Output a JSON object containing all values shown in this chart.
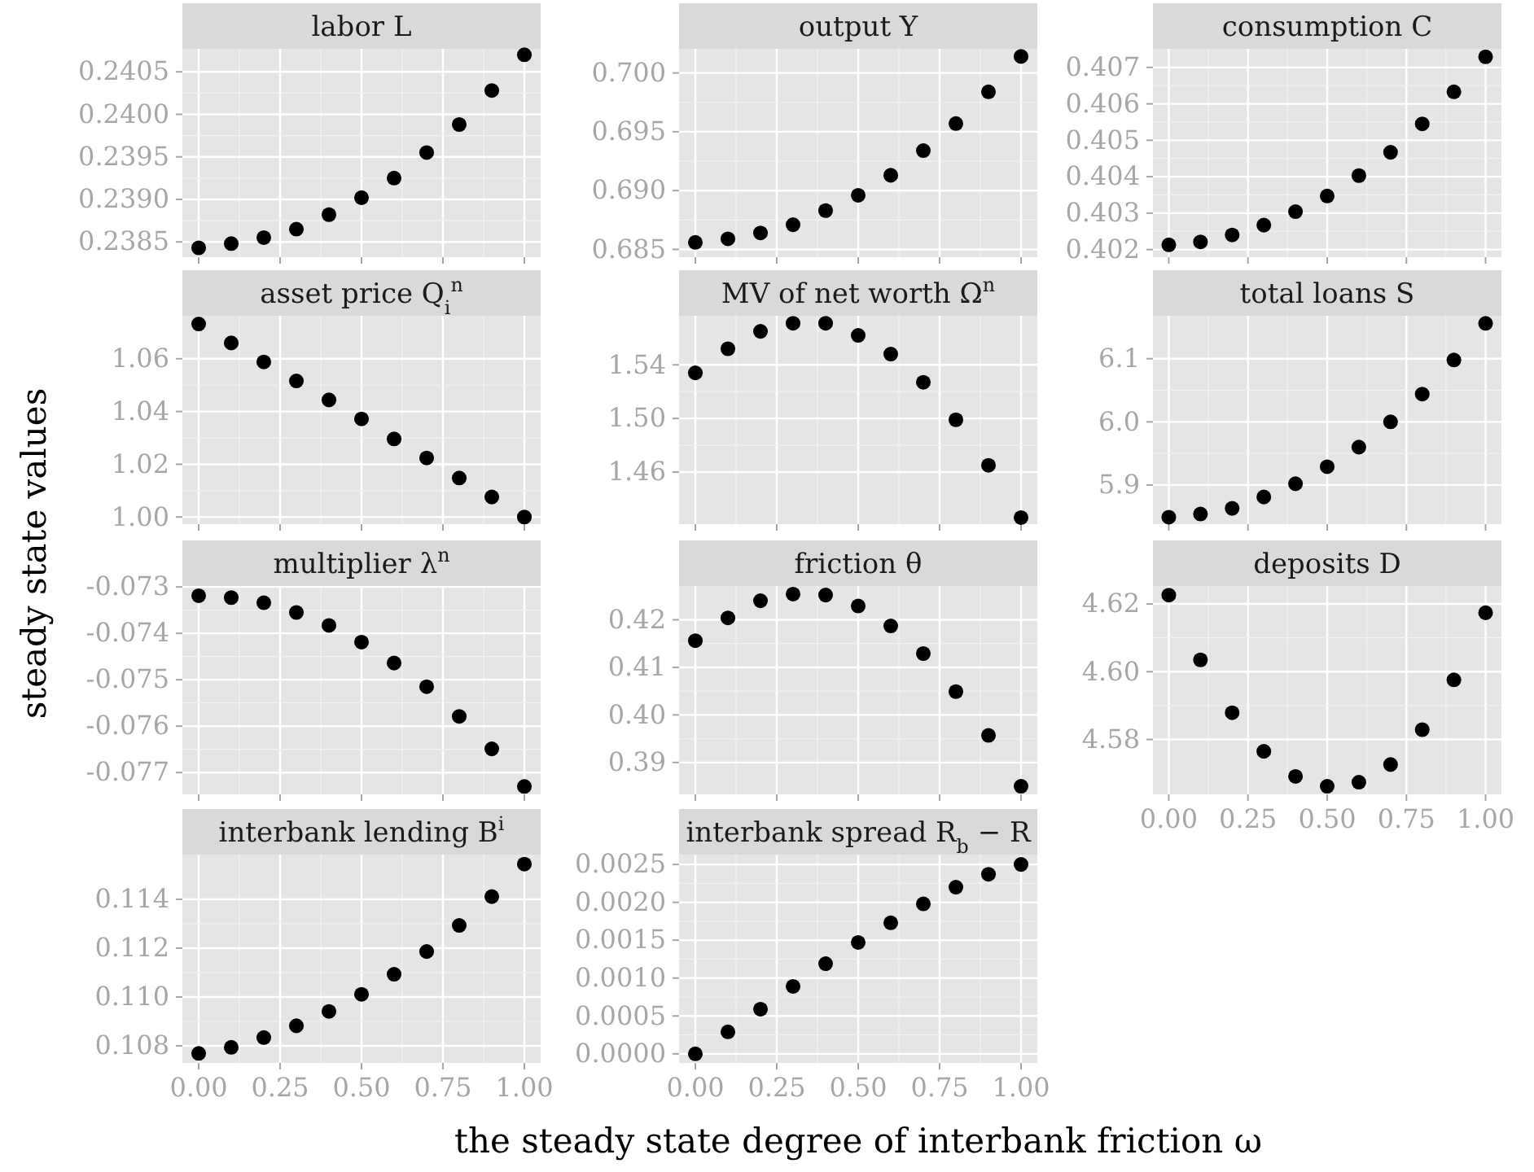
{
  "chart_data": [
    {
      "type": "scatter",
      "title": "labor L",
      "x": [
        0,
        0.1,
        0.2,
        0.3,
        0.4,
        0.5,
        0.6,
        0.7,
        0.8,
        0.9,
        1
      ],
      "values": [
        0.23843,
        0.23848,
        0.23855,
        0.23865,
        0.23882,
        0.23902,
        0.23925,
        0.23955,
        0.23988,
        0.24028,
        0.2407
      ],
      "color": "#000000",
      "marker": "circle",
      "xlim": [
        -0.05,
        1.05
      ],
      "xticks": [
        0,
        0.25,
        0.5,
        0.75,
        1
      ],
      "ylim": [
        0.23832,
        0.24077
      ],
      "yticks": [
        0.2385,
        {
          "value": 0.239,
          "label": "0.2390"
        },
        0.2395,
        {
          "value": 0.24,
          "label": "0.2400"
        },
        0.2405
      ],
      "grid": true,
      "tick_labels": "y"
    },
    {
      "type": "scatter",
      "title": "output Y",
      "x": [
        0,
        0.1,
        0.2,
        0.3,
        0.4,
        0.5,
        0.6,
        0.7,
        0.8,
        0.9,
        1
      ],
      "values": [
        0.6856,
        0.6859,
        0.6864,
        0.6871,
        0.6883,
        0.6896,
        0.6913,
        0.6934,
        0.6957,
        0.6984,
        0.7014
      ],
      "color": "#000000",
      "marker": "circle",
      "xlim": [
        -0.05,
        1.05
      ],
      "xticks": [
        0,
        0.25,
        0.5,
        0.75,
        1
      ],
      "ylim": [
        0.68434,
        0.70205
      ],
      "yticks": [
        0.685,
        {
          "value": 0.69,
          "label": "0.690"
        },
        0.695,
        {
          "value": 0.7,
          "label": "0.700"
        }
      ],
      "grid": true,
      "tick_labels": "y"
    },
    {
      "type": "scatter",
      "title": "consumption C",
      "x": [
        0,
        0.1,
        0.2,
        0.3,
        0.4,
        0.5,
        0.6,
        0.7,
        0.8,
        0.9,
        1
      ],
      "values": [
        0.40213,
        0.40221,
        0.4024,
        0.40267,
        0.40304,
        0.40347,
        0.40403,
        0.40467,
        0.40545,
        0.40633,
        0.40729
      ],
      "color": "#000000",
      "marker": "circle",
      "xlim": [
        -0.05,
        1.05
      ],
      "xticks": [
        0,
        0.25,
        0.5,
        0.75,
        1
      ],
      "ylim": [
        0.40179,
        0.40751
      ],
      "yticks": [
        0.402,
        0.403,
        0.404,
        0.405,
        0.406,
        0.407
      ],
      "grid": true,
      "tick_labels": "y"
    },
    {
      "type": "scatter",
      "title": "asset price Q$_{i}$$^{n}$",
      "ylabel": "steady state values",
      "x": [
        0,
        0.1,
        0.2,
        0.3,
        0.4,
        0.5,
        0.6,
        0.7,
        0.8,
        0.9,
        1
      ],
      "values": [
        1.0732,
        1.066,
        1.0588,
        1.0516,
        1.0444,
        1.0372,
        1.0296,
        1.0224,
        1.0148,
        1.0076,
        1.0
      ],
      "color": "#000000",
      "marker": "circle",
      "xlim": [
        -0.05,
        1.05
      ],
      "xticks": [
        0,
        0.25,
        0.5,
        0.75,
        1
      ],
      "ylim": [
        0.9973,
        1.0763
      ],
      "yticks": [
        {
          "value": 1,
          "label": "1.00"
        },
        1.02,
        1.04,
        1.06
      ],
      "grid": true,
      "tick_labels": "y"
    },
    {
      "type": "scatter",
      "title": "MV of net worth Ω$^{n}$",
      "x": [
        0,
        0.1,
        0.2,
        0.3,
        0.4,
        0.5,
        0.6,
        0.7,
        0.8,
        0.9,
        1
      ],
      "values": [
        1.534,
        1.552,
        1.565,
        1.571,
        1.571,
        1.562,
        1.548,
        1.527,
        1.499,
        1.465,
        1.426
      ],
      "color": "#000000",
      "marker": "circle",
      "xlim": [
        -0.05,
        1.05
      ],
      "xticks": [
        0,
        0.25,
        0.5,
        0.75,
        1
      ],
      "ylim": [
        1.4211,
        1.5766
      ],
      "yticks": [
        1.46,
        {
          "value": 1.5,
          "label": "1.50"
        },
        1.54
      ],
      "grid": true,
      "tick_labels": "y"
    },
    {
      "type": "scatter",
      "title": "total loans S",
      "x": [
        0,
        0.1,
        0.2,
        0.3,
        0.4,
        0.5,
        0.6,
        0.7,
        0.8,
        0.9,
        1
      ],
      "values": [
        5.849,
        5.854,
        5.863,
        5.881,
        5.902,
        5.929,
        5.96,
        6.0,
        6.044,
        6.098,
        6.156
      ],
      "color": "#000000",
      "marker": "circle",
      "xlim": [
        -0.05,
        1.05
      ],
      "xticks": [
        0,
        0.25,
        0.5,
        0.75,
        1
      ],
      "ylim": [
        5.838,
        6.168
      ],
      "yticks": [
        5.9,
        {
          "value": 6,
          "label": "6.0"
        },
        6.1
      ],
      "grid": true,
      "tick_labels": "y"
    },
    {
      "type": "scatter",
      "title": "multiplier λ$^{n}$",
      "x": [
        0,
        0.1,
        0.2,
        0.3,
        0.4,
        0.5,
        0.6,
        0.7,
        0.8,
        0.9,
        1
      ],
      "values": [
        -0.07319,
        -0.07323,
        -0.07334,
        -0.07355,
        -0.07383,
        -0.07419,
        -0.07464,
        -0.07515,
        -0.07579,
        -0.07649,
        -0.0773
      ],
      "color": "#000000",
      "marker": "circle",
      "xlim": [
        -0.05,
        1.05
      ],
      "xticks": [
        0,
        0.25,
        0.5,
        0.75,
        1
      ],
      "ylim": [
        -0.07747,
        -0.07298
      ],
      "yticks": [
        -0.077,
        -0.076,
        -0.075,
        -0.074,
        -0.073
      ],
      "grid": true,
      "tick_labels": "y"
    },
    {
      "type": "scatter",
      "title": "friction θ",
      "x": [
        0,
        0.1,
        0.2,
        0.3,
        0.4,
        0.5,
        0.6,
        0.7,
        0.8,
        0.9,
        1
      ],
      "values": [
        0.4156,
        0.4204,
        0.424,
        0.4254,
        0.4252,
        0.4229,
        0.4187,
        0.4129,
        0.4049,
        0.3957,
        0.385
      ],
      "color": "#000000",
      "marker": "circle",
      "xlim": [
        -0.05,
        1.05
      ],
      "xticks": [
        0,
        0.25,
        0.5,
        0.75,
        1
      ],
      "ylim": [
        0.3833,
        0.4271
      ],
      "yticks": [
        0.39,
        {
          "value": 0.4,
          "label": "0.40"
        },
        0.41,
        0.42
      ],
      "grid": true,
      "tick_labels": "y"
    },
    {
      "type": "scatter",
      "title": "deposits D",
      "x": [
        0,
        0.1,
        0.2,
        0.3,
        0.4,
        0.5,
        0.6,
        0.7,
        0.8,
        0.9,
        1
      ],
      "values": [
        4.6226,
        4.6035,
        4.5879,
        4.5765,
        4.5691,
        4.5662,
        4.5674,
        4.5726,
        4.5829,
        4.5976,
        4.6174
      ],
      "color": "#000000",
      "marker": "circle",
      "xlim": [
        -0.05,
        1.05
      ],
      "xticks": [
        {
          "value": 0,
          "label": "0.00"
        },
        0.25,
        {
          "value": 0.5,
          "label": "0.50"
        },
        0.75,
        {
          "value": 1,
          "label": "1.00"
        }
      ],
      "ylim": [
        4.5638,
        4.6253
      ],
      "yticks": [
        4.58,
        {
          "value": 4.6,
          "label": "4.60"
        },
        4.62
      ],
      "grid": true
    },
    {
      "type": "scatter",
      "title": "interbank lending B$^{i}$",
      "x": [
        0,
        0.1,
        0.2,
        0.3,
        0.4,
        0.5,
        0.6,
        0.7,
        0.8,
        0.9,
        1
      ],
      "values": [
        0.10769,
        0.10794,
        0.10834,
        0.10882,
        0.10941,
        0.11011,
        0.11093,
        0.11186,
        0.11293,
        0.11411,
        0.11544
      ],
      "color": "#000000",
      "marker": "circle",
      "xlim": [
        -0.05,
        1.05
      ],
      "xticks": [
        {
          "value": 0,
          "label": "0.00"
        },
        0.25,
        {
          "value": 0.5,
          "label": "0.50"
        },
        0.75,
        {
          "value": 1,
          "label": "1.00"
        }
      ],
      "ylim": [
        0.1073,
        0.11583
      ],
      "yticks": [
        0.108,
        {
          "value": 0.11,
          "label": "0.110"
        },
        0.112,
        0.114
      ],
      "grid": true
    },
    {
      "type": "scatter",
      "title": "interbank spread R$_{b}$ − R",
      "xlabel": "the steady state degree of interbank friction ω",
      "x": [
        0,
        0.1,
        0.2,
        0.3,
        0.4,
        0.5,
        0.6,
        0.7,
        0.8,
        0.9,
        1
      ],
      "values": [
        0,
        0.00029,
        0.00059,
        0.00089,
        0.00119,
        0.00147,
        0.00173,
        0.00198,
        0.0022,
        0.00237,
        0.0025
      ],
      "color": "#000000",
      "marker": "circle",
      "xlim": [
        -0.05,
        1.05
      ],
      "xticks": [
        {
          "value": 0,
          "label": "0.00"
        },
        0.25,
        {
          "value": 0.5,
          "label": "0.50"
        },
        0.75,
        {
          "value": 1,
          "label": "1.00"
        }
      ],
      "ylim": [
        -0.00012,
        0.00263
      ],
      "yticks": [
        {
          "value": 0,
          "label": "0.0000"
        },
        0.0005,
        {
          "value": 0.001,
          "label": "0.0010"
        },
        {
          "value": 0.0015,
          "label": "0.0015"
        },
        {
          "value": 0.002,
          "label": "0.0020"
        },
        0.0025
      ],
      "grid": true
    }
  ]
}
